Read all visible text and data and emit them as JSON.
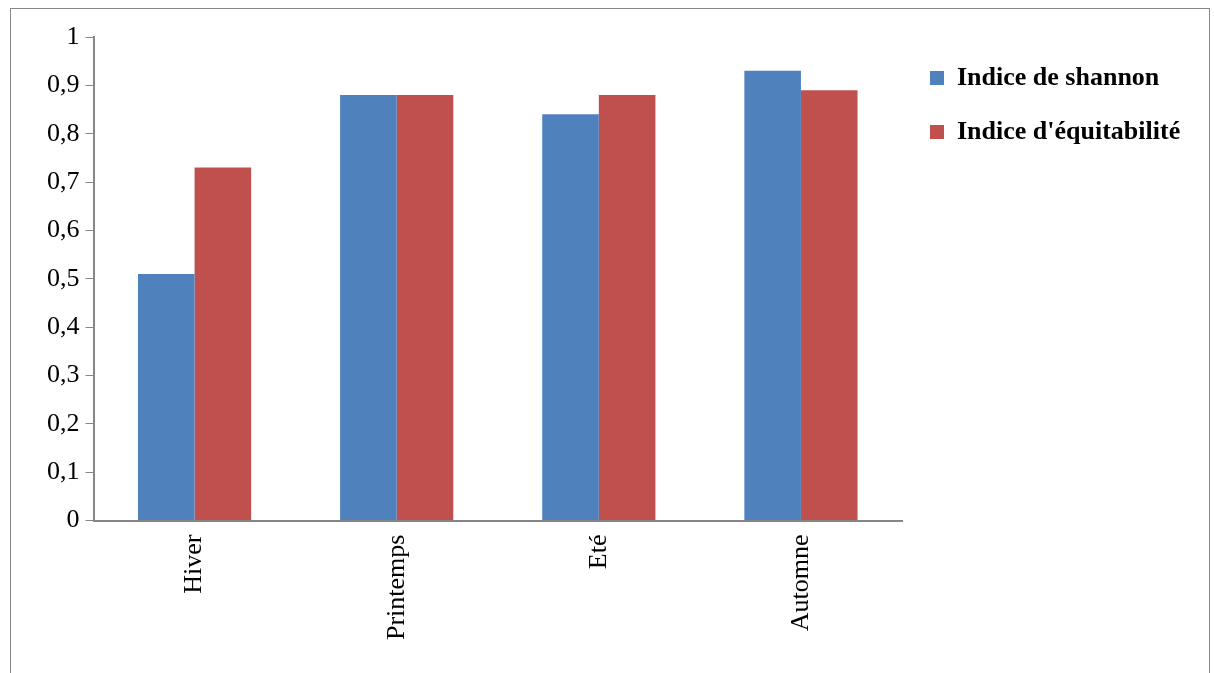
{
  "chart_data": {
    "type": "bar",
    "categories": [
      "Hiver",
      "Printemps",
      "Eté",
      "Automne"
    ],
    "series": [
      {
        "name": "Indice de shannon",
        "color": "#4f81bd",
        "values": [
          0.51,
          0.88,
          0.84,
          0.93
        ]
      },
      {
        "name": "Indice d'équitabilité",
        "color": "#c0504d",
        "values": [
          0.73,
          0.88,
          0.88,
          0.89
        ]
      }
    ],
    "ylim": [
      0,
      1
    ],
    "yticks": [
      {
        "value": 0,
        "label": "0"
      },
      {
        "value": 0.1,
        "label": "0,1"
      },
      {
        "value": 0.2,
        "label": "0,2"
      },
      {
        "value": 0.3,
        "label": "0,3"
      },
      {
        "value": 0.4,
        "label": "0,4"
      },
      {
        "value": 0.5,
        "label": "0,5"
      },
      {
        "value": 0.6,
        "label": "0,6"
      },
      {
        "value": 0.7,
        "label": "0,7"
      },
      {
        "value": 0.8,
        "label": "0,8"
      },
      {
        "value": 0.9,
        "label": "0,9"
      },
      {
        "value": 1,
        "label": "1"
      }
    ],
    "grid": false,
    "legend": "right"
  }
}
